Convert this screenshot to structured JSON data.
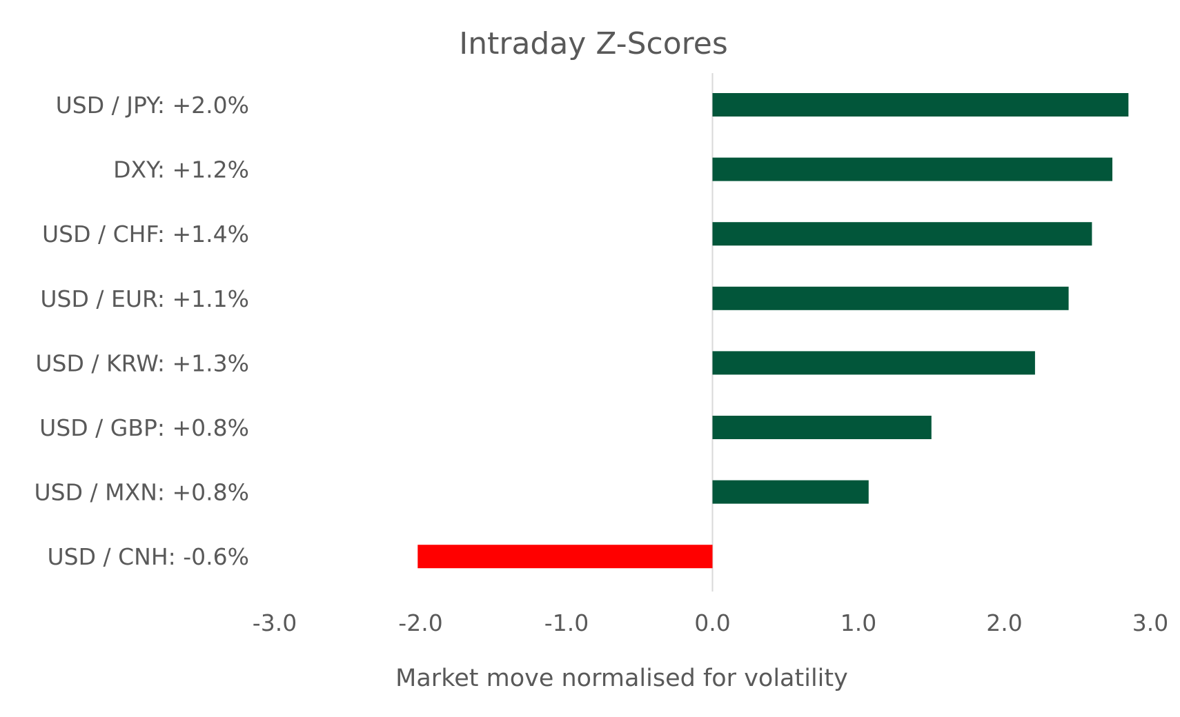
{
  "chart_data": {
    "type": "bar",
    "orientation": "horizontal",
    "title": "Intraday Z-Scores",
    "xlabel": "Market move normalised for volatility",
    "ylabel": "",
    "categories": [
      "USD / JPY: +2.0%",
      "DXY: +1.2%",
      "USD / CHF: +1.4%",
      "USD / EUR: +1.1%",
      "USD / KRW: +1.3%",
      "USD / GBP: +0.8%",
      "USD / MXN: +0.8%",
      "USD / CNH: -0.6%"
    ],
    "values": [
      2.85,
      2.74,
      2.6,
      2.44,
      2.21,
      1.5,
      1.07,
      -2.02
    ],
    "xlim": [
      -3.0,
      3.0
    ],
    "ticks": [
      -3.0,
      -2.0,
      -1.0,
      0.0,
      1.0,
      2.0,
      3.0
    ],
    "tick_labels": [
      "-3.0",
      "-2.0",
      "-1.0",
      "0.0",
      "1.0",
      "2.0",
      "3.0"
    ],
    "grid": false,
    "legend": "none",
    "colors": {
      "positive": "#02563A",
      "negative": "#FF0000",
      "zero_line": "#D9D9D9",
      "text": "#595959"
    }
  }
}
